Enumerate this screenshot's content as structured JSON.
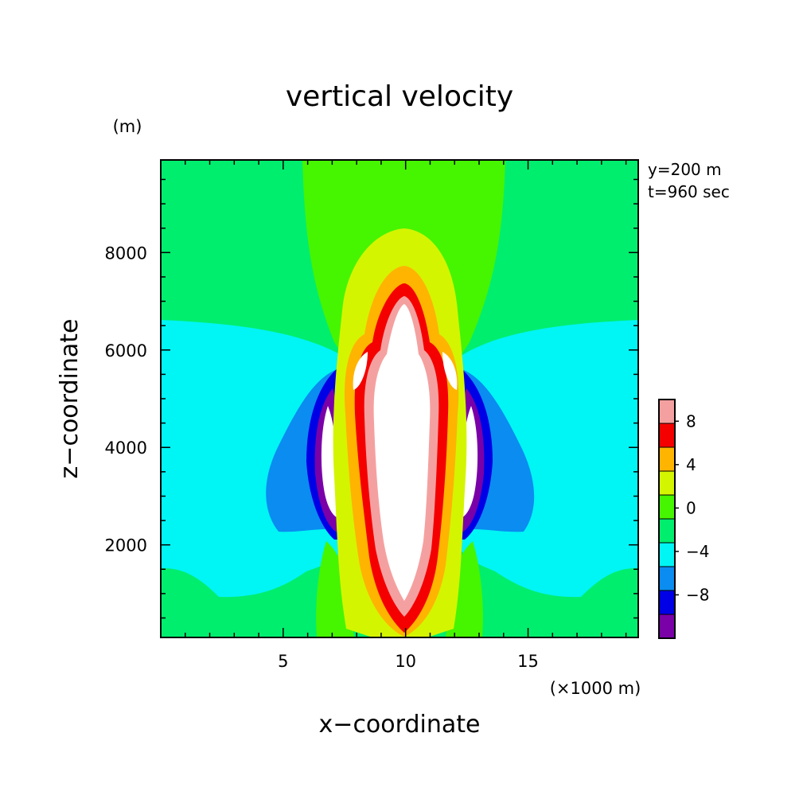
{
  "chart_data": {
    "type": "contour",
    "title": "vertical velocity",
    "xlabel": "x−coordinate",
    "ylabel": "z−coordinate",
    "x_unit": "(×1000 m)",
    "y_unit": "(m)",
    "annotations": [
      "y=200 m",
      "t=960 sec"
    ],
    "xlim": [
      0,
      19.5
    ],
    "ylim": [
      100,
      9900
    ],
    "x_ticks": [
      {
        "value": 5,
        "label": "5"
      },
      {
        "value": 10,
        "label": "10"
      },
      {
        "value": 15,
        "label": "15"
      }
    ],
    "y_ticks": [
      {
        "value": 2000,
        "label": "2000"
      },
      {
        "value": 4000,
        "label": "4000"
      },
      {
        "value": 6000,
        "label": "6000"
      },
      {
        "value": 8000,
        "label": "8000"
      }
    ],
    "colorbar": {
      "levels": [
        {
          "min": -12,
          "max": -10,
          "color": "#7a00a8"
        },
        {
          "min": -10,
          "max": -8,
          "color": "#0000e6"
        },
        {
          "min": -8,
          "max": -4,
          "color": "#0a8cf0"
        },
        {
          "min": -4,
          "max": -2,
          "color": "#00f5f5"
        },
        {
          "min": -2,
          "max": 0,
          "color": "#00ee6e"
        },
        {
          "min": 0,
          "max": 2,
          "color": "#46f500"
        },
        {
          "min": 2,
          "max": 4,
          "color": "#d4f500"
        },
        {
          "min": 4,
          "max": 6,
          "color": "#ffb400"
        },
        {
          "min": 6,
          "max": 8,
          "color": "#f50000"
        },
        {
          "min": 8,
          "max": 10,
          "color": "#f5a0a0"
        }
      ],
      "tick_labels": [
        "8",
        "4",
        "0",
        "−4",
        "−8"
      ],
      "over_color": "#ffffff"
    }
  }
}
